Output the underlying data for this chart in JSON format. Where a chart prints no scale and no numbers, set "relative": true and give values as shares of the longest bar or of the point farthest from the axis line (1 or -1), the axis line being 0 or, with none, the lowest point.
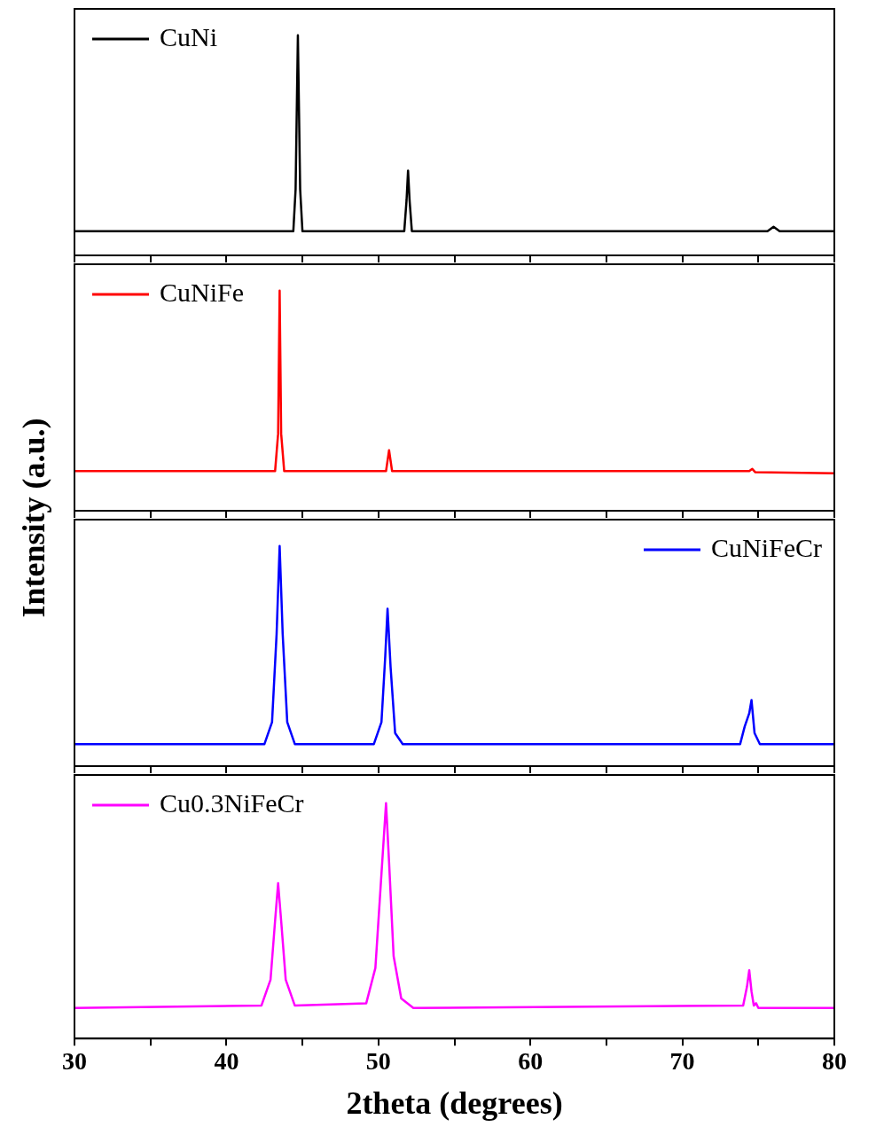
{
  "chart_data": [
    {
      "type": "line",
      "relative": true,
      "legend": "top left",
      "ylabel": "Intensity (a.u.)",
      "xlim": [
        30,
        80
      ],
      "xticks": [
        30,
        {
          "value": 35,
          "label": null
        },
        40,
        {
          "value": 45,
          "label": null
        },
        50,
        {
          "value": 55,
          "label": null
        },
        60,
        {
          "value": 65,
          "label": null
        },
        70,
        {
          "value": 75,
          "label": null
        },
        80
      ],
      "tick_labels": false,
      "series": [
        {
          "name": "CuNi",
          "color": "#000000",
          "x": [
            30,
            44.4,
            44.55,
            44.7,
            44.85,
            45.0,
            51.7,
            51.85,
            51.95,
            52.05,
            52.2,
            75.6,
            76.0,
            76.4,
            80
          ],
          "values": [
            0.11,
            0.11,
            0.3,
            1,
            0.3,
            0.11,
            0.11,
            0.25,
            0.385,
            0.25,
            0.11,
            0.11,
            0.13,
            0.11,
            0.11
          ]
        }
      ]
    },
    {
      "type": "line",
      "relative": true,
      "legend": "top left",
      "xlim": [
        30,
        80
      ],
      "xticks": [
        30,
        {
          "value": 35,
          "label": null
        },
        40,
        {
          "value": 45,
          "label": null
        },
        50,
        {
          "value": 55,
          "label": null
        },
        60,
        {
          "value": 65,
          "label": null
        },
        70,
        {
          "value": 75,
          "label": null
        },
        80
      ],
      "tick_labels": false,
      "series": [
        {
          "name": "CuNiFe",
          "color": "#ff0000",
          "x": [
            30,
            43.2,
            43.4,
            43.5,
            43.6,
            43.8,
            50.5,
            50.7,
            50.9,
            74.4,
            74.6,
            74.8,
            80
          ],
          "values": [
            0.18,
            0.18,
            0.35,
            1,
            0.35,
            0.18,
            0.18,
            0.275,
            0.18,
            0.18,
            0.19,
            0.175,
            0.17
          ]
        }
      ]
    },
    {
      "type": "line",
      "relative": true,
      "legend": "top right",
      "xlim": [
        30,
        80
      ],
      "xticks": [
        30,
        {
          "value": 35,
          "label": null
        },
        40,
        {
          "value": 45,
          "label": null
        },
        50,
        {
          "value": 55,
          "label": null
        },
        60,
        {
          "value": 65,
          "label": null
        },
        70,
        {
          "value": 75,
          "label": null
        },
        80
      ],
      "tick_labels": false,
      "series": [
        {
          "name": "CuNiFeCr",
          "color": "#0000ff",
          "x": [
            30,
            42.5,
            43.0,
            43.3,
            43.5,
            43.7,
            44.0,
            44.5,
            49.7,
            50.2,
            50.45,
            50.6,
            50.8,
            51.1,
            51.6,
            73.8,
            74.1,
            74.25,
            74.4,
            74.55,
            74.75,
            75.1,
            80
          ],
          "values": [
            0.1,
            0.1,
            0.2,
            0.6,
            1,
            0.6,
            0.2,
            0.1,
            0.1,
            0.2,
            0.5,
            0.715,
            0.45,
            0.15,
            0.1,
            0.1,
            0.18,
            0.21,
            0.24,
            0.3,
            0.15,
            0.1,
            0.1
          ]
        }
      ]
    },
    {
      "type": "line",
      "relative": true,
      "legend": "top left",
      "xlabel": "2theta (degrees)",
      "xlim": [
        30,
        80
      ],
      "xticks": [
        30,
        {
          "value": 35,
          "label": null
        },
        40,
        {
          "value": 45,
          "label": null
        },
        50,
        {
          "value": 55,
          "label": null
        },
        60,
        {
          "value": 65,
          "label": null
        },
        70,
        {
          "value": 75,
          "label": null
        },
        80
      ],
      "tick_labels": "x",
      "series": [
        {
          "name": "Cu0.3NiFeCr",
          "color": "#ff00ff",
          "x": [
            30,
            42.3,
            42.9,
            43.2,
            43.4,
            43.6,
            43.9,
            44.5,
            49.2,
            49.8,
            50.2,
            50.5,
            50.7,
            51.0,
            51.5,
            52.3,
            74.0,
            74.25,
            74.4,
            74.55,
            74.7,
            74.85,
            75.0,
            80
          ],
          "values": [
            0.13,
            0.14,
            0.25,
            0.5,
            0.66,
            0.5,
            0.25,
            0.14,
            0.15,
            0.3,
            0.7,
            1,
            0.75,
            0.35,
            0.17,
            0.13,
            0.14,
            0.22,
            0.29,
            0.2,
            0.14,
            0.15,
            0.13,
            0.13
          ]
        }
      ]
    }
  ]
}
